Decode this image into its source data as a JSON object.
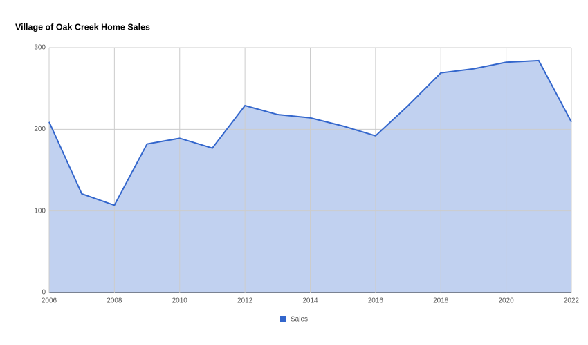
{
  "chart_data": {
    "type": "area",
    "title": "Village of Oak Creek Home Sales",
    "x": [
      2006,
      2007,
      2008,
      2009,
      2010,
      2011,
      2012,
      2013,
      2014,
      2015,
      2016,
      2017,
      2018,
      2019,
      2020,
      2021,
      2022
    ],
    "series": [
      {
        "name": "Sales",
        "color": "#3366cc",
        "values": [
          209,
          121,
          107,
          182,
          189,
          177,
          229,
          218,
          214,
          204,
          192,
          229,
          269,
          274,
          282,
          284,
          209
        ]
      }
    ],
    "xlim": [
      2006,
      2022
    ],
    "xticks": [
      2006,
      2008,
      2010,
      2012,
      2014,
      2016,
      2018,
      2020,
      2022
    ],
    "ylim": [
      0,
      300
    ],
    "yticks": [
      0,
      100,
      200,
      300
    ],
    "grid": true,
    "legend": "bottom"
  }
}
